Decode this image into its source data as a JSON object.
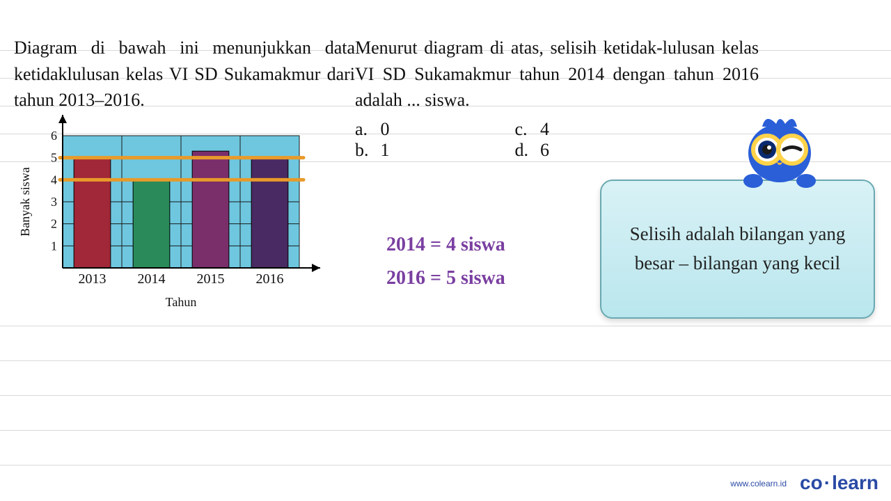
{
  "left_prompt": "Diagram di bawah ini menunjukkan data ketidaklulusan kelas VI SD Sukamakmur dari tahun 2013–2016.",
  "right_prompt": "Menurut diagram di atas, selisih ketidak-lulusan kelas VI SD Sukamakmur tahun 2014 dengan tahun 2016 adalah ... siswa.",
  "options": {
    "a": {
      "label": "a.",
      "value": "0"
    },
    "b": {
      "label": "b.",
      "value": "1"
    },
    "c": {
      "label": "c.",
      "value": "4"
    },
    "d": {
      "label": "d.",
      "value": "6"
    }
  },
  "handwritten": {
    "line1": "2014 = 4 siswa",
    "line2": "2016 = 5 siswa",
    "color": "#7a3fa0",
    "fontsize": 28
  },
  "tip": {
    "text": "Selisih adalah bilangan yang besar – bilangan yang kecil",
    "bg_top": "#d9f2f6",
    "bg_bottom": "#b9e6ed",
    "border": "#6aa8b0",
    "fontsize": 27
  },
  "chart": {
    "type": "bar",
    "xlabel": "Tahun",
    "ylabel": "Banyak siswa",
    "label_fontsize": 18,
    "categories": [
      "2013",
      "2014",
      "2015",
      "2016"
    ],
    "values": [
      5,
      4,
      5.3,
      5
    ],
    "bar_colors": [
      "#a02838",
      "#2a8a5a",
      "#7a2e6a",
      "#4a2a62"
    ],
    "plot_bg": "#6ec7df",
    "grid_color": "#1a1a1a",
    "axis_color": "#000000",
    "ylim": [
      0,
      6
    ],
    "ytick_step": 1,
    "bar_width": 0.62,
    "highlight_lines": {
      "y_values": [
        5,
        4
      ],
      "color": "#e89a2a",
      "stroke_width": 5
    },
    "tick_fontsize": 18
  },
  "ruled_line_color": "#d8d8d8",
  "brand": {
    "name_left": "co",
    "name_right": "learn",
    "url": "www.colearn.id",
    "color": "#2a4aa5"
  },
  "mascot": {
    "body_color": "#2a5fd8",
    "glasses_color": "#ffd34a",
    "eye_color": "#ffffff",
    "pupil_color": "#1a1a1a",
    "beak_color": "#f5b940"
  }
}
